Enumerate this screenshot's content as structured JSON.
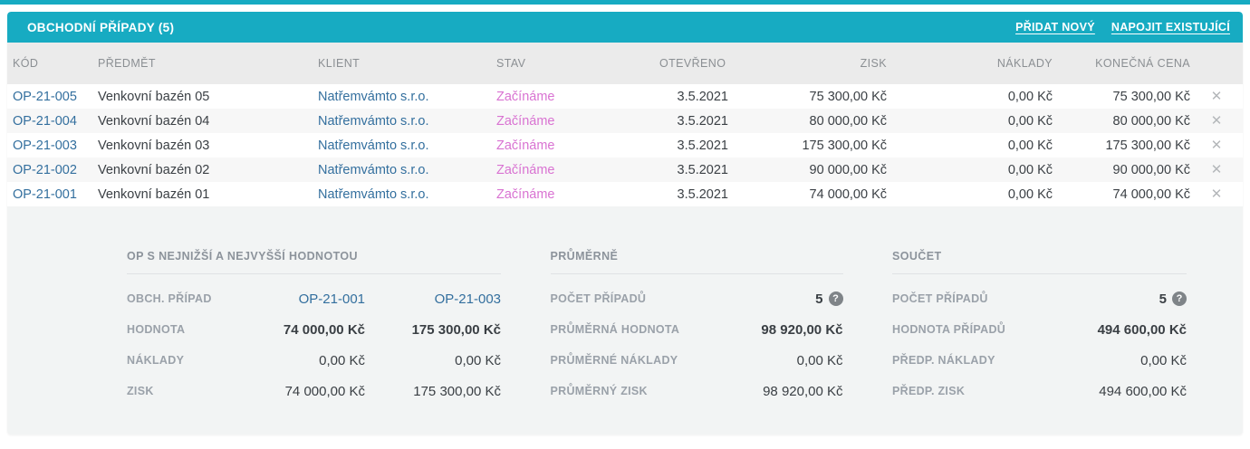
{
  "colors": {
    "accent_teal": "#17abc2",
    "link_blue": "#336f9e",
    "status_pink": "#d973d2",
    "summary_bg": "#f2f4f4",
    "table_header_bg": "#ebebeb"
  },
  "panel": {
    "title": "OBCHODNÍ PŘÍPADY (5)",
    "actions": {
      "add_new": "PŘIDAT NOVÝ",
      "attach_existing": "NAPOJIT EXISTUJÍCÍ"
    }
  },
  "table": {
    "columns": [
      "KÓD",
      "PŘEDMĚT",
      "KLIENT",
      "STAV",
      "OTEVŘENO O",
      "ZISK",
      "NÁKLADY",
      "KONEČNÁ CENA"
    ],
    "rows": [
      {
        "kod": "OP-21-005",
        "predmet": "Venkovní bazén 05",
        "klient": "Natřemvámto s.r.o.",
        "stav": "Začínáme",
        "otevreno": "3.5.2021",
        "zisk": "75 300,00 Kč",
        "naklady": "0,00 Kč",
        "cena": "75 300,00 Kč"
      },
      {
        "kod": "OP-21-004",
        "predmet": "Venkovní bazén 04",
        "klient": "Natřemvámto s.r.o.",
        "stav": "Začínáme",
        "otevreno": "3.5.2021",
        "zisk": "80 000,00 Kč",
        "naklady": "0,00 Kč",
        "cena": "80 000,00 Kč"
      },
      {
        "kod": "OP-21-003",
        "predmet": "Venkovní bazén 03",
        "klient": "Natřemvámto s.r.o.",
        "stav": "Začínáme",
        "otevreno": "3.5.2021",
        "zisk": "175 300,00 Kč",
        "naklady": "0,00 Kč",
        "cena": "175 300,00 Kč"
      },
      {
        "kod": "OP-21-002",
        "predmet": "Venkovní bazén 02",
        "klient": "Natřemvámto s.r.o.",
        "stav": "Začínáme",
        "otevreno": "3.5.2021",
        "zisk": "90 000,00 Kč",
        "naklady": "0,00 Kč",
        "cena": "90 000,00 Kč"
      },
      {
        "kod": "OP-21-001",
        "predmet": "Venkovní bazén 01",
        "klient": "Natřemvámto s.r.o.",
        "stav": "Začínáme",
        "otevreno": "3.5.2021",
        "zisk": "74 000,00 Kč",
        "naklady": "0,00 Kč",
        "cena": "74 000,00 Kč"
      }
    ]
  },
  "summary": {
    "minmax": {
      "title": "OP S NEJNIŽŠÍ A NEJVYŠŠÍ HODNOTOU",
      "rows": [
        {
          "label": "OBCH. PŘÍPAD",
          "low": "OP-21-001",
          "high": "OP-21-003"
        },
        {
          "label": "HODNOTA",
          "low": "74 000,00 Kč",
          "high": "175 300,00 Kč"
        },
        {
          "label": "NÁKLADY",
          "low": "0,00 Kč",
          "high": "0,00 Kč"
        },
        {
          "label": "ZISK",
          "low": "74 000,00 Kč",
          "high": "175 300,00 Kč"
        }
      ]
    },
    "average": {
      "title": "PRŮMĚRNĚ",
      "rows": [
        {
          "label": "POČET PŘÍPADŮ",
          "value": "5"
        },
        {
          "label": "PRŮMĚRNÁ HODNOTA",
          "value": "98 920,00 Kč"
        },
        {
          "label": "PRŮMĚRNÉ NÁKLADY",
          "value": "0,00 Kč"
        },
        {
          "label": "PRŮMĚRNÝ ZISK",
          "value": "98 920,00 Kč"
        }
      ]
    },
    "total": {
      "title": "SOUČET",
      "rows": [
        {
          "label": "POČET PŘÍPADŮ",
          "value": "5"
        },
        {
          "label": "HODNOTA PŘÍPADŮ",
          "value": "494 600,00 Kč"
        },
        {
          "label": "PŘEDP. NÁKLADY",
          "value": "0,00 Kč"
        },
        {
          "label": "PŘEDP. ZISK",
          "value": "494 600,00 Kč"
        }
      ]
    }
  },
  "icons": {
    "close": "✕",
    "help": "?"
  }
}
